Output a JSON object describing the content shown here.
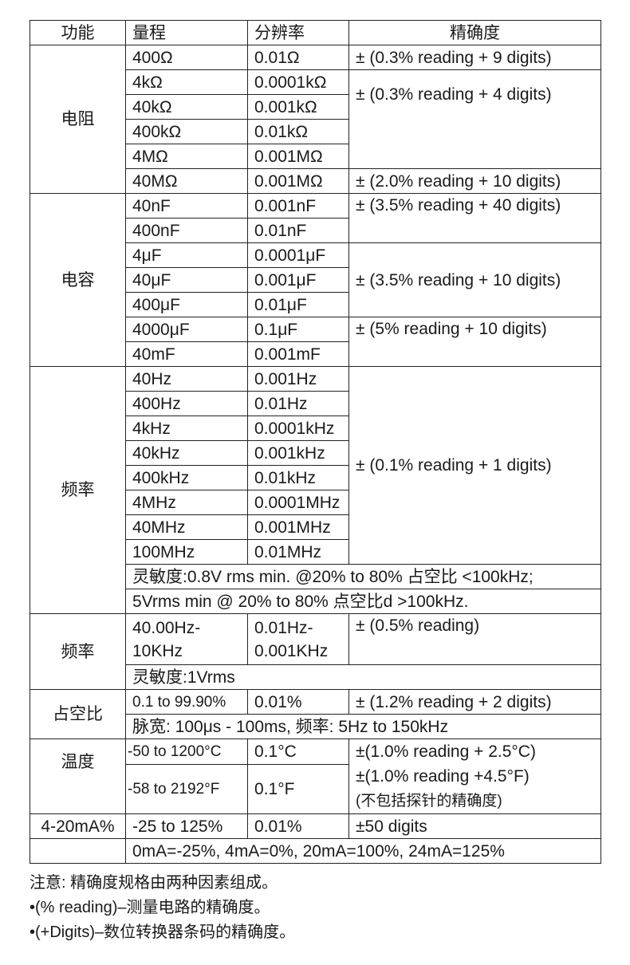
{
  "header": [
    "功能",
    "量程",
    "分辨率",
    "精确度"
  ],
  "resistance": {
    "label": "电阻",
    "ranges": [
      "400Ω",
      "4kΩ",
      "40kΩ",
      "400kΩ",
      "4MΩ",
      "40MΩ"
    ],
    "resolutions": [
      "0.01Ω",
      "0.0001kΩ",
      "0.001kΩ",
      "0.01kΩ",
      "0.001MΩ",
      "0.001MΩ"
    ],
    "accuracy": [
      "± (0.3% reading + 9 digits)",
      "± (0.3% reading + 4 digits)",
      "± (2.0% reading + 10 digits)"
    ]
  },
  "capacitance": {
    "label": "电容",
    "ranges": [
      "40nF",
      "400nF",
      "4μF",
      "40μF",
      "400μF",
      "4000μF",
      "40mF"
    ],
    "resolutions": [
      "0.001nF",
      "0.01nF",
      "0.0001μF",
      "0.001μF",
      "0.01μF",
      "0.1μF",
      "0.001mF"
    ],
    "accuracy": [
      "± (3.5% reading + 40 digits)",
      "± (3.5% reading + 10 digits)",
      "± (5% reading + 10 digits)"
    ]
  },
  "frequency": {
    "label": "频率",
    "ranges": [
      "40Hz",
      "400Hz",
      "4kHz",
      "40kHz",
      "400kHz",
      "4MHz",
      "40MHz",
      "100MHz"
    ],
    "resolutions": [
      "0.001Hz",
      "0.01Hz",
      "0.0001kHz",
      "0.001kHz",
      "0.01kHz",
      "0.0001MHz",
      "0.001MHz",
      "0.01MHz"
    ],
    "accuracy": "± (0.1% reading + 1 digits)",
    "sensitivity": [
      "灵敏度:0.8V rms min. @20% to 80% 占空比 <100kHz;",
      "5Vrms min @ 20% to 80% 点空比d >100kHz."
    ]
  },
  "frequency2": {
    "label": "频率",
    "range": [
      "40.00Hz-",
      "10KHz"
    ],
    "resolution": [
      "0.01Hz-",
      "0.001KHz"
    ],
    "accuracy": "± (0.5% reading)",
    "sensitivity": "灵敏度:1Vrms"
  },
  "duty": {
    "label": "占空比",
    "range": "0.1 to 99.90%",
    "resolution": "0.01%",
    "accuracy": "± (1.2% reading + 2 digits)",
    "note": "脉宽: 100μs - 100ms,   频率: 5Hz to 150kHz"
  },
  "temperature": {
    "label": "温度",
    "ranges": [
      "-50 to 1200°C",
      "-58 to 2192°F"
    ],
    "resolutions": [
      "0.1°C",
      "0.1°F"
    ],
    "accuracy": [
      "±(1.0% reading + 2.5°C)",
      "±(1.0% reading +4.5°F)",
      "(不包括探针的精确度)"
    ]
  },
  "current": {
    "label": "4-20mA%",
    "range": "-25 to 125%",
    "resolution": "0.01%",
    "accuracy": "±50 digits",
    "note": "0mA=-25%, 4mA=0%, 20mA=100%, 24mA=125%"
  },
  "notes": [
    "注意: 精确度规格由两种因素组成。",
    "•(% reading)–测量电路的精确度。",
    "•(+Digits)–数位转换器条码的精确度。"
  ]
}
